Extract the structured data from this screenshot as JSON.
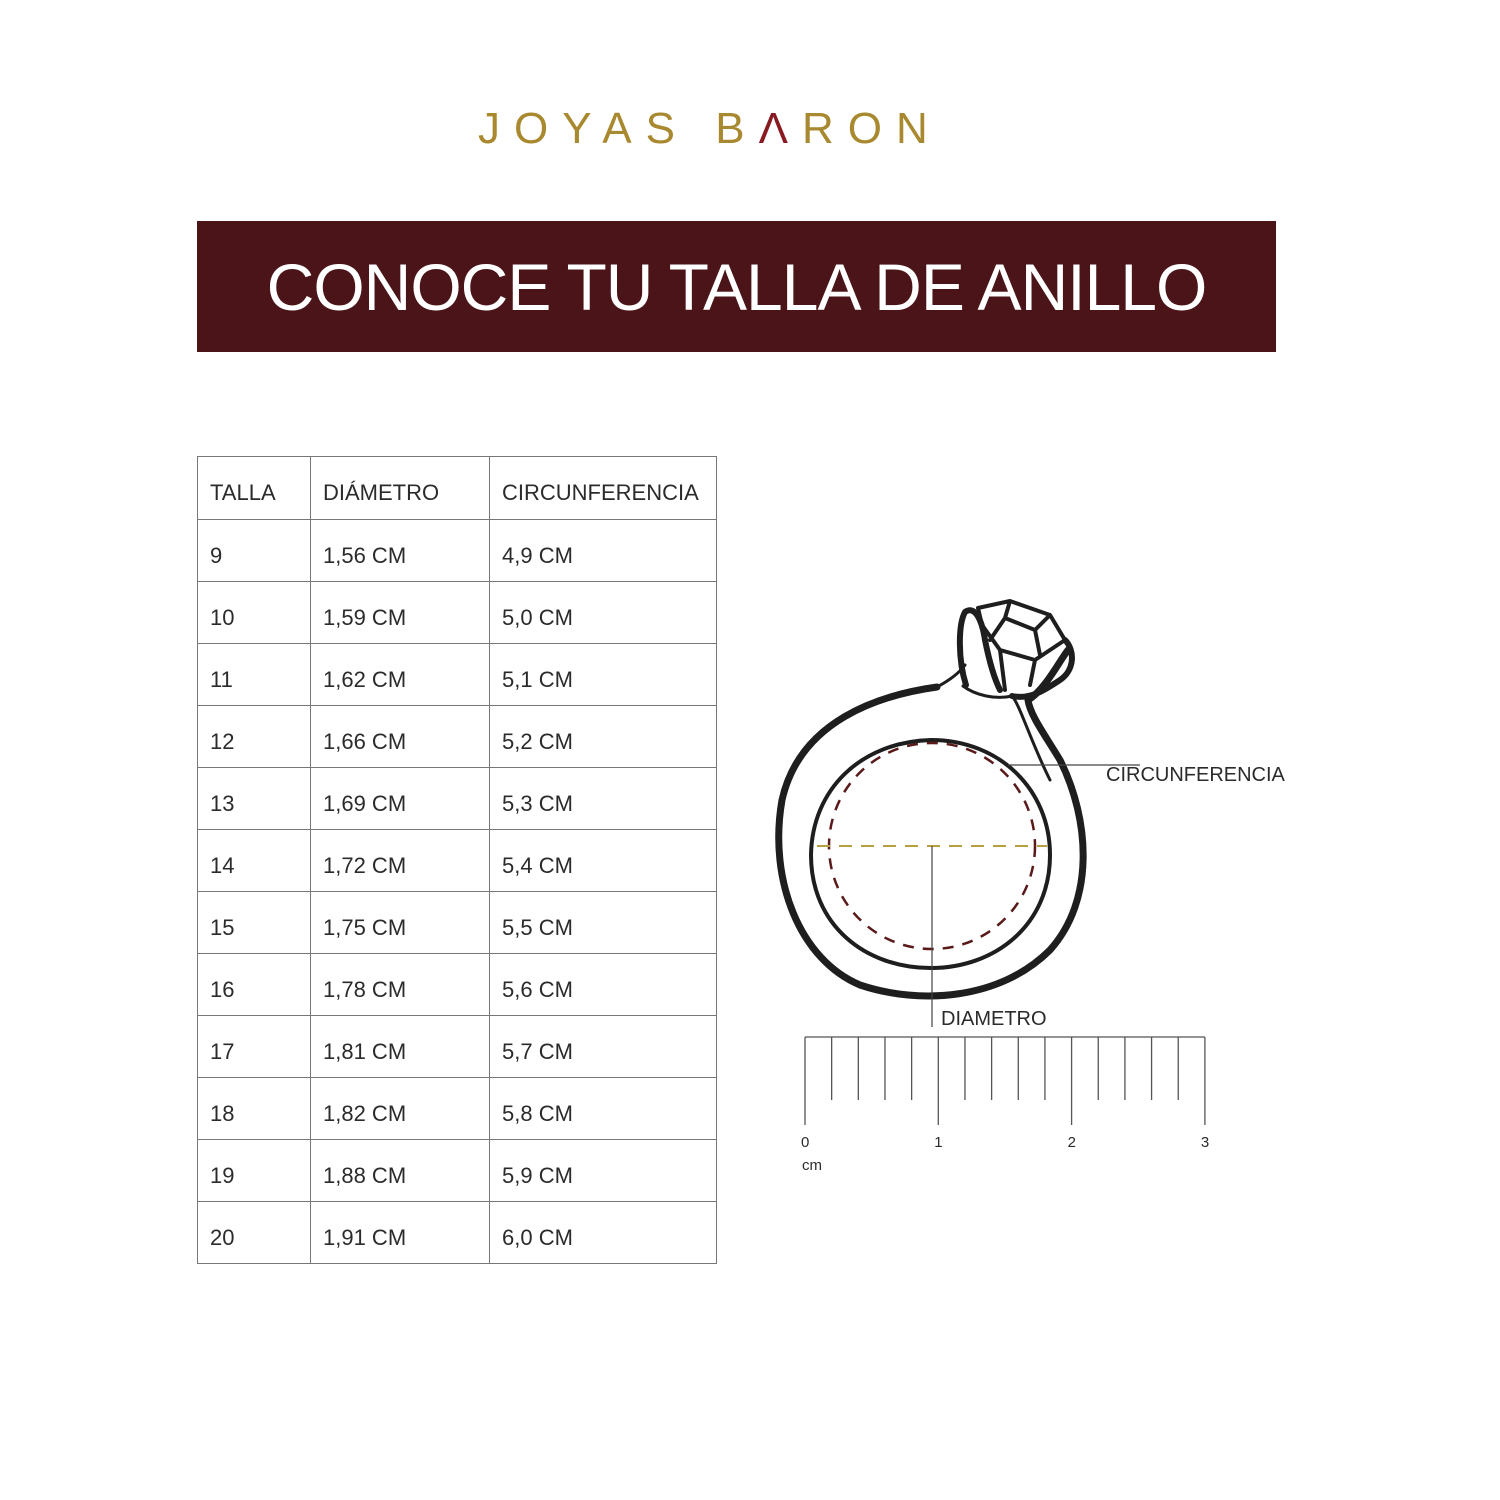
{
  "brand": {
    "logo_text": "JOYAS BARON",
    "logo_parts": [
      "JOYAS B",
      "Λ",
      "RON"
    ],
    "gold": "#a8892f",
    "accent": "#8a1a22"
  },
  "banner": {
    "title": "CONOCE TU TALLA DE ANILLO",
    "background": "#4a1418"
  },
  "table": {
    "headers": [
      "TALLA",
      "DIÁMETRO",
      "CIRCUNFERENCIA"
    ],
    "rows": [
      [
        "9",
        "1,56 CM",
        "4,9 CM"
      ],
      [
        "10",
        "1,59 CM",
        "5,0 CM"
      ],
      [
        "11",
        "1,62 CM",
        "5,1 CM"
      ],
      [
        "12",
        "1,66 CM",
        "5,2 CM"
      ],
      [
        "13",
        "1,69 CM",
        "5,3 CM"
      ],
      [
        "14",
        "1,72 CM",
        "5,4 CM"
      ],
      [
        "15",
        "1,75 CM",
        "5,5 CM"
      ],
      [
        "16",
        "1,78 CM",
        "5,6 CM"
      ],
      [
        "17",
        "1,81 CM",
        "5,7 CM"
      ],
      [
        "18",
        "1,82 CM",
        "5,8 CM"
      ],
      [
        "19",
        "1,88 CM",
        "5,9 CM"
      ],
      [
        "20",
        "1,91 CM",
        "6,0 CM"
      ]
    ]
  },
  "diagram": {
    "circumference_label": "CIRCUNFERENCIA",
    "diameter_label": "DIAMETRO",
    "ruler": {
      "ticks": [
        "0",
        "1",
        "2",
        "3"
      ],
      "unit": "cm",
      "subdivisions_per_unit": 5
    },
    "circumference_color": "#5a1a1a",
    "diameter_color": "#b8a040"
  }
}
